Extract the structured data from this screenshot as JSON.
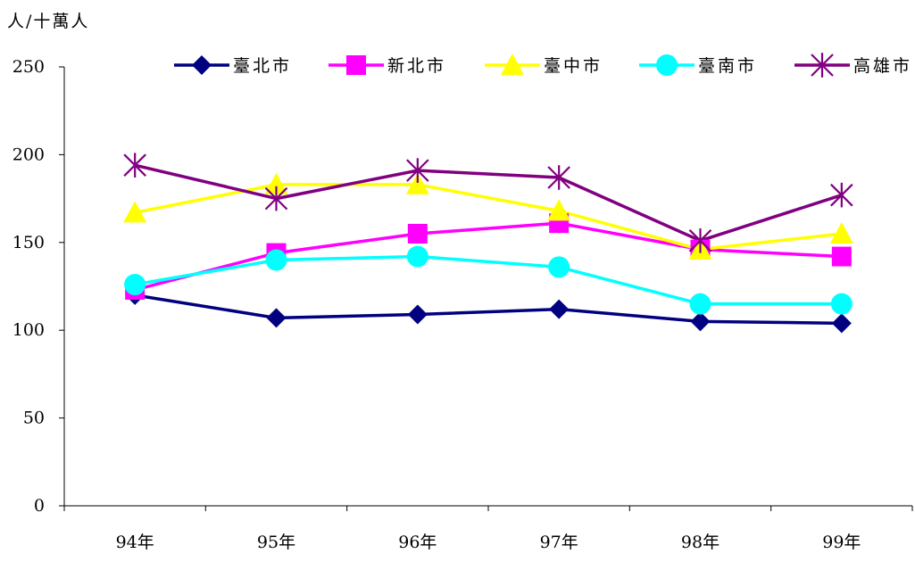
{
  "chart_data": {
    "type": "line",
    "title": "",
    "xlabel": "",
    "ylabel": "人/十萬人",
    "categories": [
      "94年",
      "95年",
      "96年",
      "97年",
      "98年",
      "99年"
    ],
    "ylim": [
      0,
      250
    ],
    "yticks": [
      0,
      50,
      100,
      150,
      200,
      250
    ],
    "grid": false,
    "legend_position": "top",
    "series": [
      {
        "name": "臺北市",
        "color": "#000080",
        "marker": "diamond",
        "values": [
          120,
          107,
          109,
          112,
          105,
          104
        ]
      },
      {
        "name": "新北市",
        "color": "#FF00FF",
        "marker": "square",
        "values": [
          123,
          144,
          155,
          161,
          146,
          142
        ]
      },
      {
        "name": "臺中市",
        "color": "#FFFF00",
        "marker": "triangle",
        "values": [
          167,
          183,
          183,
          168,
          146,
          155
        ]
      },
      {
        "name": "臺南市",
        "color": "#00FFFF",
        "marker": "circle",
        "values": [
          126,
          140,
          142,
          136,
          115,
          115
        ]
      },
      {
        "name": "高雄市",
        "color": "#800080",
        "marker": "star",
        "values": [
          194,
          175,
          191,
          187,
          151,
          177
        ]
      }
    ]
  }
}
